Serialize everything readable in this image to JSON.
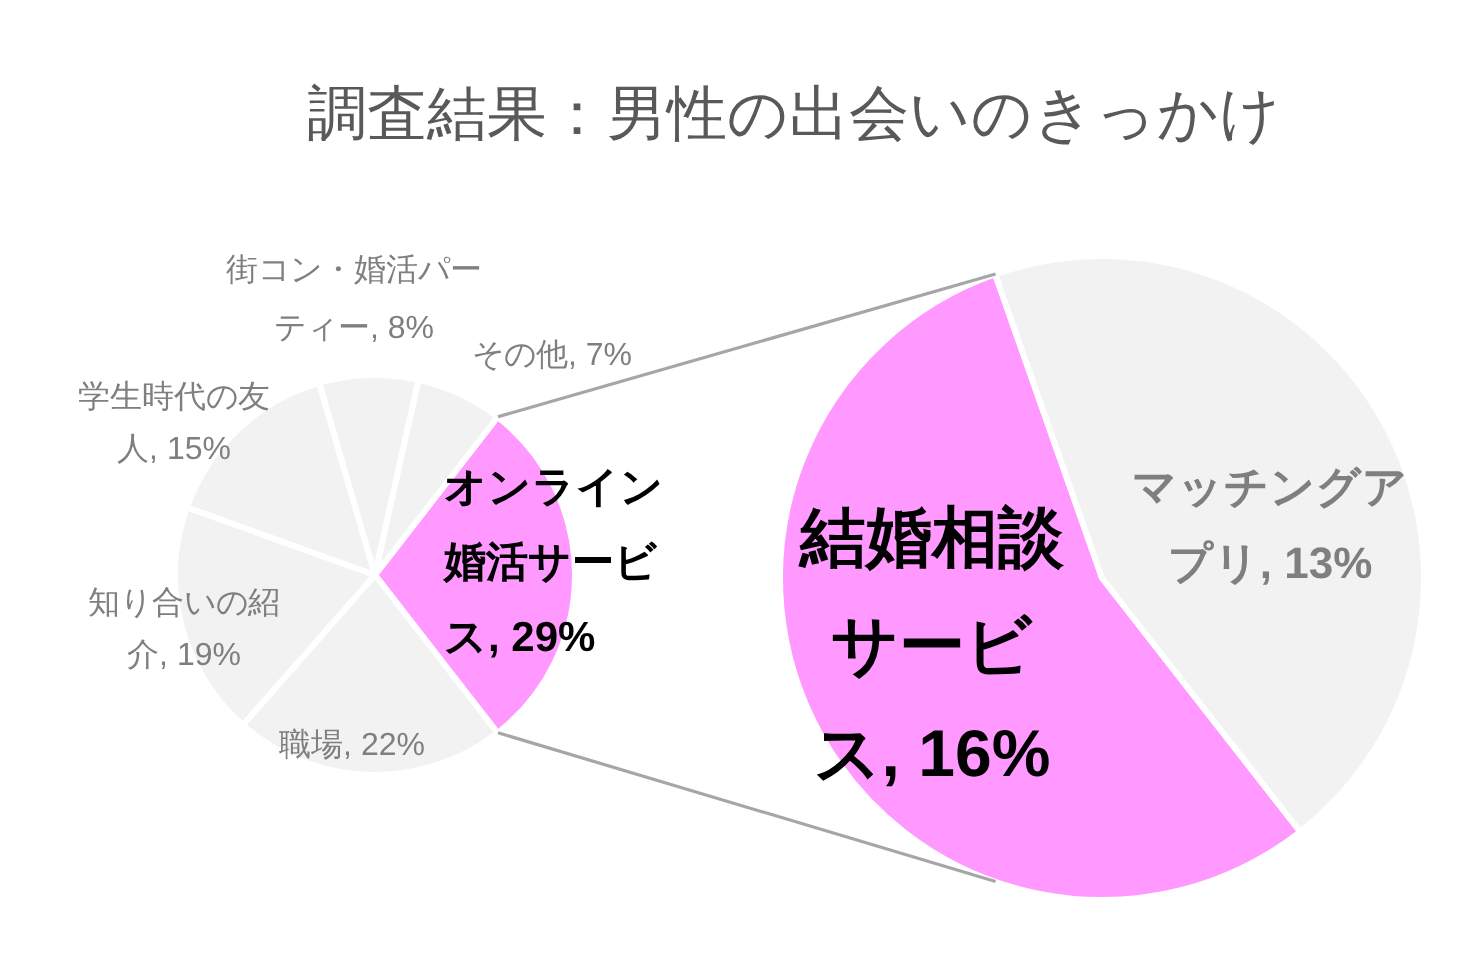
{
  "chart_data": [
    {
      "type": "pie",
      "title": "調査結果：男性の出会いのきっかけ",
      "categories": [
        "オンライン婚活サービス",
        "職場",
        "知り合いの紹介",
        "学生時代の友人",
        "街コン・婚活パーティー",
        "その他"
      ],
      "values": [
        29,
        22,
        19,
        15,
        8,
        7
      ],
      "colors": [
        "#ff99ff",
        "#f2f2f2",
        "#f2f2f2",
        "#f2f2f2",
        "#f2f2f2",
        "#f2f2f2"
      ],
      "value_labels": [
        "29%",
        "22%",
        "19%",
        "15%",
        "8%",
        "7%"
      ]
    },
    {
      "type": "pie",
      "categories": [
        "結婚相談サービス",
        "マッチングアプリ"
      ],
      "values": [
        16,
        13
      ],
      "colors": [
        "#ff99ff",
        "#f2f2f2"
      ],
      "value_labels": [
        "16%",
        "13%"
      ]
    }
  ]
}
